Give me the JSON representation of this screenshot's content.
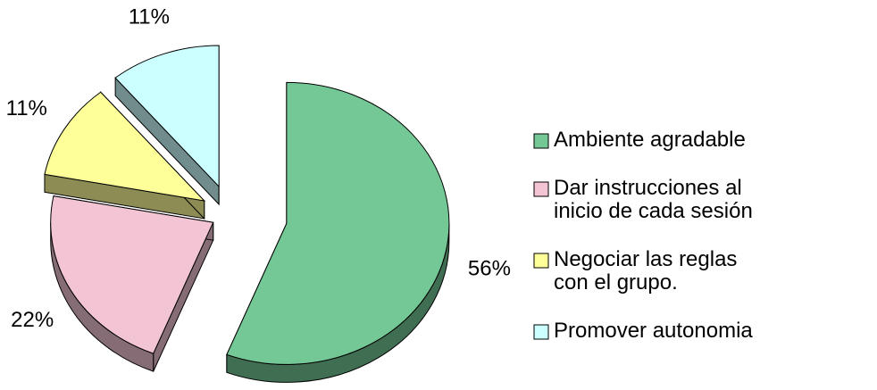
{
  "chart_data": {
    "type": "pie",
    "categories": [
      "Ambiente agradable",
      "Dar instrucciones al inicio de cada sesión",
      "Negociar las reglas con el grupo.",
      "Promover autonomia"
    ],
    "values": [
      56,
      22,
      11,
      11
    ],
    "value_labels": [
      "56%",
      "22%",
      "11%",
      "11%"
    ],
    "colors": [
      "#74c896",
      "#f2c4d4",
      "#ffff99",
      "#ccffff"
    ],
    "legend": "right"
  }
}
